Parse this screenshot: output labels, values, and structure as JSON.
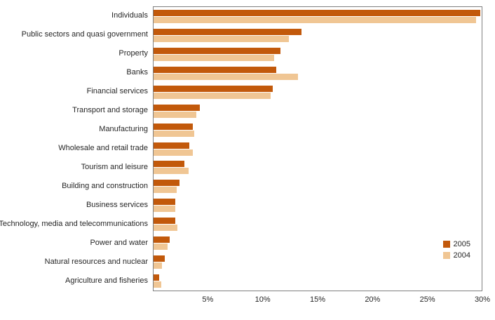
{
  "chart_data": {
    "type": "bar",
    "orientation": "horizontal",
    "title": "",
    "xlabel": "",
    "ylabel": "",
    "categories": [
      "Individuals",
      "Public sectors and quasi government",
      "Property",
      "Banks",
      "Financial services",
      "Transport and storage",
      "Manufacturing",
      "Wholesale and retail trade",
      "Tourism and leisure",
      "Building and construction",
      "Business services",
      "Technology, media and telecommunications",
      "Power and water",
      "Natural resources and nuclear",
      "Agriculture and fisheries"
    ],
    "series": [
      {
        "name": "2005",
        "color": "#c2590b",
        "values": [
          29.9,
          13.5,
          11.6,
          11.2,
          10.9,
          4.2,
          3.6,
          3.3,
          2.8,
          2.4,
          2.0,
          2.0,
          1.5,
          1.0,
          0.5
        ]
      },
      {
        "name": "2004",
        "color": "#f0c694",
        "values": [
          29.5,
          12.4,
          11.0,
          13.2,
          10.7,
          3.9,
          3.7,
          3.6,
          3.2,
          2.1,
          2.0,
          2.2,
          1.3,
          0.8,
          0.7
        ]
      }
    ],
    "x_axis": {
      "max": 30,
      "tick_values": [
        5,
        10,
        15,
        20,
        25,
        30
      ],
      "tick_labels": [
        "5%",
        "10%",
        "15%",
        "20%",
        "25%",
        "30%"
      ]
    },
    "legend": {
      "position": "right",
      "entries": [
        "2005",
        "2004"
      ]
    },
    "grid": false,
    "plot_border_color": "#7f7f7f"
  }
}
